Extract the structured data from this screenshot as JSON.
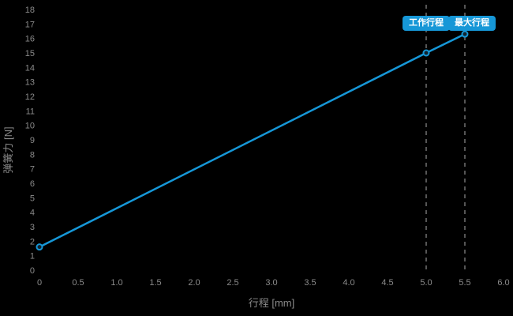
{
  "chart": {
    "x_axis_title": "行程 [mm]",
    "y_axis_title": "弹簧力 [N]",
    "badges": [
      {
        "id": "work",
        "label": "工作行程"
      },
      {
        "id": "max",
        "label": "最大行程"
      }
    ]
  },
  "chart_data": {
    "type": "line",
    "title": "",
    "xlabel": "行程 [mm]",
    "ylabel": "弹簧力 [N]",
    "xlim": [
      0,
      6.0
    ],
    "ylim": [
      0,
      18
    ],
    "grid": false,
    "legend": "none",
    "x_ticks": [
      0,
      0.5,
      1.0,
      1.5,
      2.0,
      2.5,
      3.0,
      3.5,
      4.0,
      4.5,
      5.0,
      5.5,
      6.0
    ],
    "x_tick_labels": [
      "0",
      "0.5",
      "1.0",
      "1.5",
      "2.0",
      "2.5",
      "3.0",
      "3.5",
      "4.0",
      "4.5",
      "5.0",
      "5.5",
      "6.0"
    ],
    "y_ticks": [
      0,
      1,
      2,
      3,
      4,
      5,
      6,
      7,
      8,
      9,
      10,
      11,
      12,
      13,
      14,
      15,
      16,
      17,
      18
    ],
    "series": [
      {
        "name": "弹簧力",
        "x": [
          0,
          5.0,
          5.5
        ],
        "y": [
          1.6,
          15.0,
          16.3
        ],
        "markers": true
      }
    ],
    "annotations": [
      {
        "type": "vline",
        "x": 5.0,
        "label": "工作行程"
      },
      {
        "type": "vline",
        "x": 5.5,
        "label": "最大行程"
      }
    ],
    "colors": {
      "background": "#000000",
      "line": "#1697d7",
      "tick_text": "#8a8a8a",
      "axis_title_text": "#8a8a8a",
      "dashed_line": "#555555",
      "badge_bg": "#1697d7",
      "badge_text": "#ffffff",
      "marker_fill": "#13222c"
    }
  }
}
